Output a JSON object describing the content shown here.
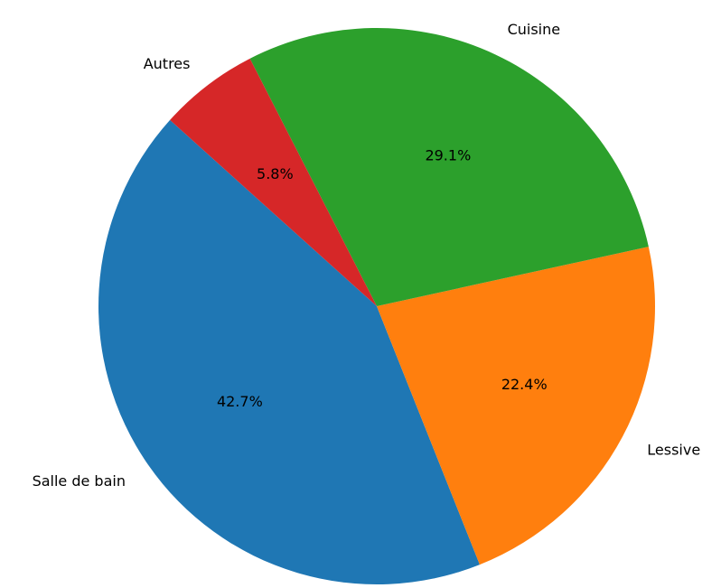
{
  "chart_data": {
    "type": "pie",
    "categories": [
      "Salle de bain",
      "Lessive",
      "Cuisine",
      "Autres"
    ],
    "values": [
      42.7,
      22.4,
      29.1,
      5.8
    ],
    "percent_labels": [
      "42.7%",
      "22.4%",
      "29.1%",
      "5.8%"
    ],
    "colors": [
      "#1f77b4",
      "#ff7f0e",
      "#2ca02c",
      "#d62728"
    ],
    "title": "",
    "legend": "none"
  }
}
